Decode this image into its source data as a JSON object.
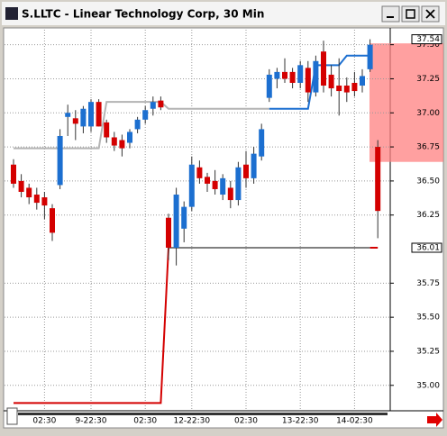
{
  "chart_data": {
    "type": "candlestick",
    "title": "S.LLTC - Linear Technology Corp, 30 Min",
    "categories": [
      null,
      null,
      null,
      null,
      "02:30",
      null,
      null,
      null,
      null,
      null,
      "9-22:30",
      null,
      null,
      null,
      null,
      null,
      null,
      "02:30",
      null,
      null,
      null,
      null,
      null,
      "12-22:30",
      null,
      null,
      null,
      null,
      null,
      null,
      "02:30",
      null,
      null,
      null,
      null,
      null,
      null,
      "13-22:30",
      null,
      null,
      null,
      null,
      null,
      null,
      "14-02:30",
      null,
      null,
      null
    ],
    "open": [
      36.62,
      36.5,
      36.45,
      36.4,
      36.38,
      36.3,
      36.47,
      36.97,
      36.96,
      36.9,
      36.9,
      37.08,
      36.93,
      36.82,
      36.8,
      36.78,
      36.88,
      36.95,
      37.03,
      37.09,
      36.23,
      36.01,
      36.15,
      36.31,
      36.6,
      36.53,
      36.5,
      36.4,
      36.45,
      36.36,
      36.62,
      36.52,
      36.68,
      37.11,
      37.25,
      37.3,
      37.3,
      37.22,
      37.33,
      37.15,
      37.45,
      37.28,
      37.2,
      37.2,
      37.22,
      37.2,
      37.32,
      36.75
    ],
    "high": [
      36.66,
      36.55,
      36.48,
      36.45,
      36.42,
      36.33,
      36.88,
      37.06,
      37.02,
      37.05,
      37.1,
      37.1,
      36.95,
      36.86,
      36.84,
      36.88,
      36.97,
      37.05,
      37.12,
      37.12,
      36.26,
      36.45,
      36.35,
      36.68,
      36.65,
      36.56,
      36.58,
      36.55,
      36.5,
      36.64,
      36.72,
      36.75,
      36.92,
      37.32,
      37.33,
      37.4,
      37.33,
      37.38,
      37.38,
      37.42,
      37.53,
      37.35,
      37.4,
      37.26,
      37.3,
      37.32,
      37.54,
      36.8
    ],
    "low": [
      36.45,
      36.38,
      36.33,
      36.29,
      36.22,
      36.06,
      36.44,
      36.83,
      36.8,
      36.85,
      36.86,
      36.9,
      36.78,
      36.72,
      36.68,
      36.74,
      36.85,
      36.92,
      36.98,
      37.02,
      35.92,
      35.88,
      36.05,
      36.28,
      36.48,
      36.42,
      36.4,
      36.36,
      36.3,
      36.32,
      36.45,
      36.48,
      36.65,
      37.08,
      37.18,
      37.22,
      37.18,
      37.18,
      37.08,
      37.12,
      37.15,
      37.12,
      36.98,
      37.08,
      37.12,
      37.15,
      37.3,
      36.08
    ],
    "close": [
      36.48,
      36.42,
      36.38,
      36.34,
      36.32,
      36.12,
      36.83,
      37.0,
      36.92,
      37.03,
      37.08,
      36.9,
      36.82,
      36.76,
      36.74,
      36.86,
      36.95,
      37.02,
      37.08,
      37.04,
      36.01,
      36.4,
      36.31,
      36.62,
      36.52,
      36.48,
      36.44,
      36.52,
      36.36,
      36.6,
      36.52,
      36.7,
      36.88,
      37.28,
      37.3,
      37.25,
      37.22,
      37.35,
      37.15,
      37.38,
      37.2,
      37.18,
      37.16,
      37.15,
      37.16,
      37.27,
      37.5,
      36.28
    ],
    "up_color": "#1c6fd0",
    "down_color": "#d40000",
    "lines": [
      {
        "color": "#b4b4b4",
        "values": [
          36.74,
          36.74,
          36.74,
          36.74,
          36.74,
          36.74,
          36.74,
          36.74,
          36.74,
          36.74,
          36.74,
          36.74,
          37.08,
          37.08,
          37.08,
          37.08,
          37.08,
          37.08,
          37.08,
          37.08,
          37.03,
          37.03,
          37.03,
          37.03,
          37.03,
          37.03,
          37.03,
          37.03,
          37.03,
          37.03,
          37.03,
          37.03,
          37.03,
          37.03,
          null,
          null,
          null,
          null,
          null,
          null,
          null,
          null,
          null,
          null,
          null,
          null,
          null,
          null
        ]
      },
      {
        "color": "#1c6fd0",
        "values": [
          null,
          null,
          null,
          null,
          null,
          null,
          null,
          null,
          null,
          null,
          null,
          null,
          null,
          null,
          null,
          null,
          null,
          null,
          null,
          null,
          null,
          null,
          null,
          null,
          null,
          null,
          null,
          null,
          null,
          null,
          null,
          null,
          null,
          37.03,
          37.03,
          37.03,
          37.03,
          37.03,
          37.03,
          37.35,
          37.35,
          37.35,
          37.35,
          37.42,
          37.42,
          37.42,
          37.42,
          null
        ]
      },
      {
        "color": "#d40000",
        "values": [
          34.87,
          34.87,
          34.87,
          34.87,
          34.87,
          34.87,
          34.87,
          34.87,
          34.87,
          34.87,
          34.87,
          34.87,
          34.87,
          34.87,
          34.87,
          34.87,
          34.87,
          34.87,
          34.87,
          34.87,
          36.01,
          null,
          null,
          null,
          null,
          null,
          null,
          null,
          null,
          null,
          null,
          null,
          null,
          null,
          null,
          null,
          null,
          null,
          null,
          null,
          null,
          null,
          null,
          null,
          null,
          null,
          null,
          null
        ]
      },
      {
        "color": "#808080",
        "values": [
          null,
          null,
          null,
          null,
          null,
          null,
          null,
          null,
          null,
          null,
          null,
          null,
          null,
          null,
          null,
          null,
          null,
          null,
          null,
          null,
          36.01,
          36.01,
          36.01,
          36.01,
          36.01,
          36.01,
          36.01,
          36.01,
          36.01,
          36.01,
          36.01,
          36.01,
          36.01,
          36.01,
          36.01,
          36.01,
          36.01,
          36.01,
          36.01,
          36.01,
          36.01,
          36.01,
          36.01,
          36.01,
          36.01,
          36.01,
          36.01,
          null
        ]
      },
      {
        "color": "#d40000",
        "values": [
          null,
          null,
          null,
          null,
          null,
          null,
          null,
          null,
          null,
          null,
          null,
          null,
          null,
          null,
          null,
          null,
          null,
          null,
          null,
          null,
          null,
          null,
          null,
          null,
          null,
          null,
          null,
          null,
          null,
          null,
          null,
          null,
          null,
          null,
          null,
          null,
          null,
          null,
          null,
          null,
          null,
          null,
          null,
          null,
          null,
          null,
          36.01,
          36.01
        ]
      }
    ],
    "highlight_zone": [
      36.64,
      37.51
    ],
    "price_markers": [
      37.54,
      36.01
    ],
    "ylim": [
      34.82,
      37.61
    ],
    "yticks": [
      {
        "value": 37.5,
        "label": "37.50"
      },
      37.25,
      {
        "value": 37,
        "label": "37.00"
      },
      36.75,
      {
        "value": 36.5,
        "label": "36.50"
      },
      36.25,
      35.75,
      {
        "value": 35.5,
        "label": "35.50"
      },
      35.25,
      {
        "value": 35,
        "label": "35.00"
      }
    ],
    "grid": true
  }
}
